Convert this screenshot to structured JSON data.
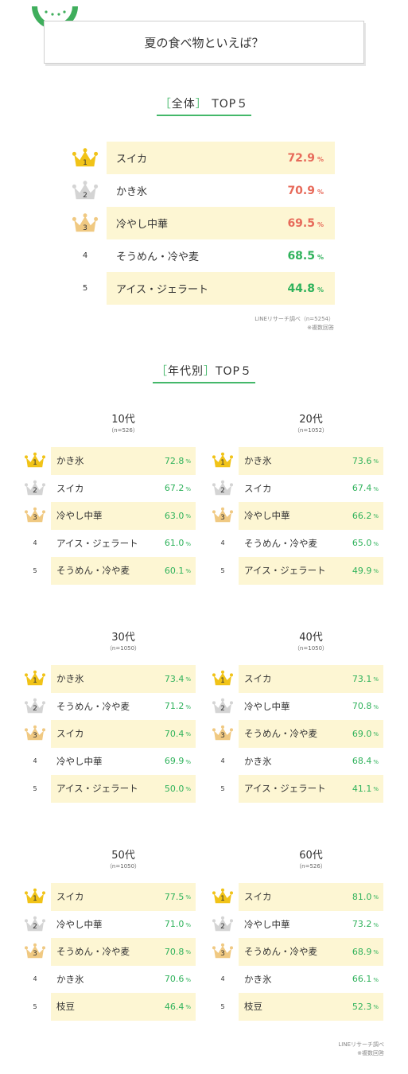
{
  "title": "夏の食べ物といえば？",
  "overall": {
    "heading_bracket_open": "［",
    "heading_label": "全体",
    "heading_bracket_close": "］",
    "heading_suffix": "TOP５",
    "percent_sign": "%",
    "rows": [
      {
        "rank": "1",
        "name": "スイカ",
        "value": "72.9",
        "highlight": true,
        "color": "red"
      },
      {
        "rank": "2",
        "name": "かき氷",
        "value": "70.9",
        "highlight": false,
        "color": "red"
      },
      {
        "rank": "3",
        "name": "冷やし中華",
        "value": "69.5",
        "highlight": true,
        "color": "red"
      },
      {
        "rank": "4",
        "name": "そうめん・冷や麦",
        "value": "68.5",
        "highlight": false,
        "color": "green"
      },
      {
        "rank": "5",
        "name": "アイス・ジェラート",
        "value": "44.8",
        "highlight": true,
        "color": "green"
      }
    ],
    "source": "LINEリサーチ調べ（n=5254）",
    "multi": "※複数回答"
  },
  "age": {
    "heading_bracket_open": "［",
    "heading_label": "年代別",
    "heading_bracket_close": "］",
    "heading_suffix": "TOP５",
    "groups": [
      {
        "title": "10代",
        "n": "（n=526）",
        "rows": [
          {
            "rank": "1",
            "name": "かき氷",
            "value": "72.8"
          },
          {
            "rank": "2",
            "name": "スイカ",
            "value": "67.2"
          },
          {
            "rank": "3",
            "name": "冷やし中華",
            "value": "63.0"
          },
          {
            "rank": "4",
            "name": "アイス・ジェラート",
            "value": "61.0"
          },
          {
            "rank": "5",
            "name": "そうめん・冷や麦",
            "value": "60.1"
          }
        ]
      },
      {
        "title": "20代",
        "n": "（n=1052）",
        "rows": [
          {
            "rank": "1",
            "name": "かき氷",
            "value": "73.6"
          },
          {
            "rank": "2",
            "name": "スイカ",
            "value": "67.4"
          },
          {
            "rank": "3",
            "name": "冷やし中華",
            "value": "66.2"
          },
          {
            "rank": "4",
            "name": "そうめん・冷や麦",
            "value": "65.0"
          },
          {
            "rank": "5",
            "name": "アイス・ジェラート",
            "value": "49.9"
          }
        ]
      },
      {
        "title": "30代",
        "n": "（n=1050）",
        "rows": [
          {
            "rank": "1",
            "name": "かき氷",
            "value": "73.4"
          },
          {
            "rank": "2",
            "name": "そうめん・冷や麦",
            "value": "71.2"
          },
          {
            "rank": "3",
            "name": "スイカ",
            "value": "70.4"
          },
          {
            "rank": "4",
            "name": "冷やし中華",
            "value": "69.9"
          },
          {
            "rank": "5",
            "name": "アイス・ジェラート",
            "value": "50.0"
          }
        ]
      },
      {
        "title": "40代",
        "n": "（n=1050）",
        "rows": [
          {
            "rank": "1",
            "name": "スイカ",
            "value": "73.1"
          },
          {
            "rank": "2",
            "name": "冷やし中華",
            "value": "70.8"
          },
          {
            "rank": "3",
            "name": "そうめん・冷や麦",
            "value": "69.0"
          },
          {
            "rank": "4",
            "name": "かき氷",
            "value": "68.4"
          },
          {
            "rank": "5",
            "name": "アイス・ジェラート",
            "value": "41.1"
          }
        ]
      },
      {
        "title": "50代",
        "n": "（n=1050）",
        "rows": [
          {
            "rank": "1",
            "name": "スイカ",
            "value": "77.5"
          },
          {
            "rank": "2",
            "name": "冷やし中華",
            "value": "71.0"
          },
          {
            "rank": "3",
            "name": "そうめん・冷や麦",
            "value": "70.8"
          },
          {
            "rank": "4",
            "name": "かき氷",
            "value": "70.6"
          },
          {
            "rank": "5",
            "name": "枝豆",
            "value": "46.4"
          }
        ]
      },
      {
        "title": "60代",
        "n": "（n=526）",
        "rows": [
          {
            "rank": "1",
            "name": "スイカ",
            "value": "81.0"
          },
          {
            "rank": "2",
            "name": "冷やし中華",
            "value": "73.2"
          },
          {
            "rank": "3",
            "name": "そうめん・冷や麦",
            "value": "68.9"
          },
          {
            "rank": "4",
            "name": "かき氷",
            "value": "66.1"
          },
          {
            "rank": "5",
            "name": "枝豆",
            "value": "52.3"
          }
        ]
      }
    ],
    "source": "LINEリサーチ調べ",
    "multi": "※複数回答"
  },
  "icons": {
    "header": "watermelon-icon",
    "rank1": "gold-crown-icon",
    "rank2": "silver-crown-icon",
    "rank3": "bronze-crown-icon"
  },
  "colors": {
    "accent": "#44b86a",
    "highlight": "#fdf6d3",
    "red_value": "#e76a5a",
    "green_value": "#2fb25b",
    "gold": "#f1c318",
    "silver": "#d4d4d4",
    "bronze": "#f0c982"
  }
}
